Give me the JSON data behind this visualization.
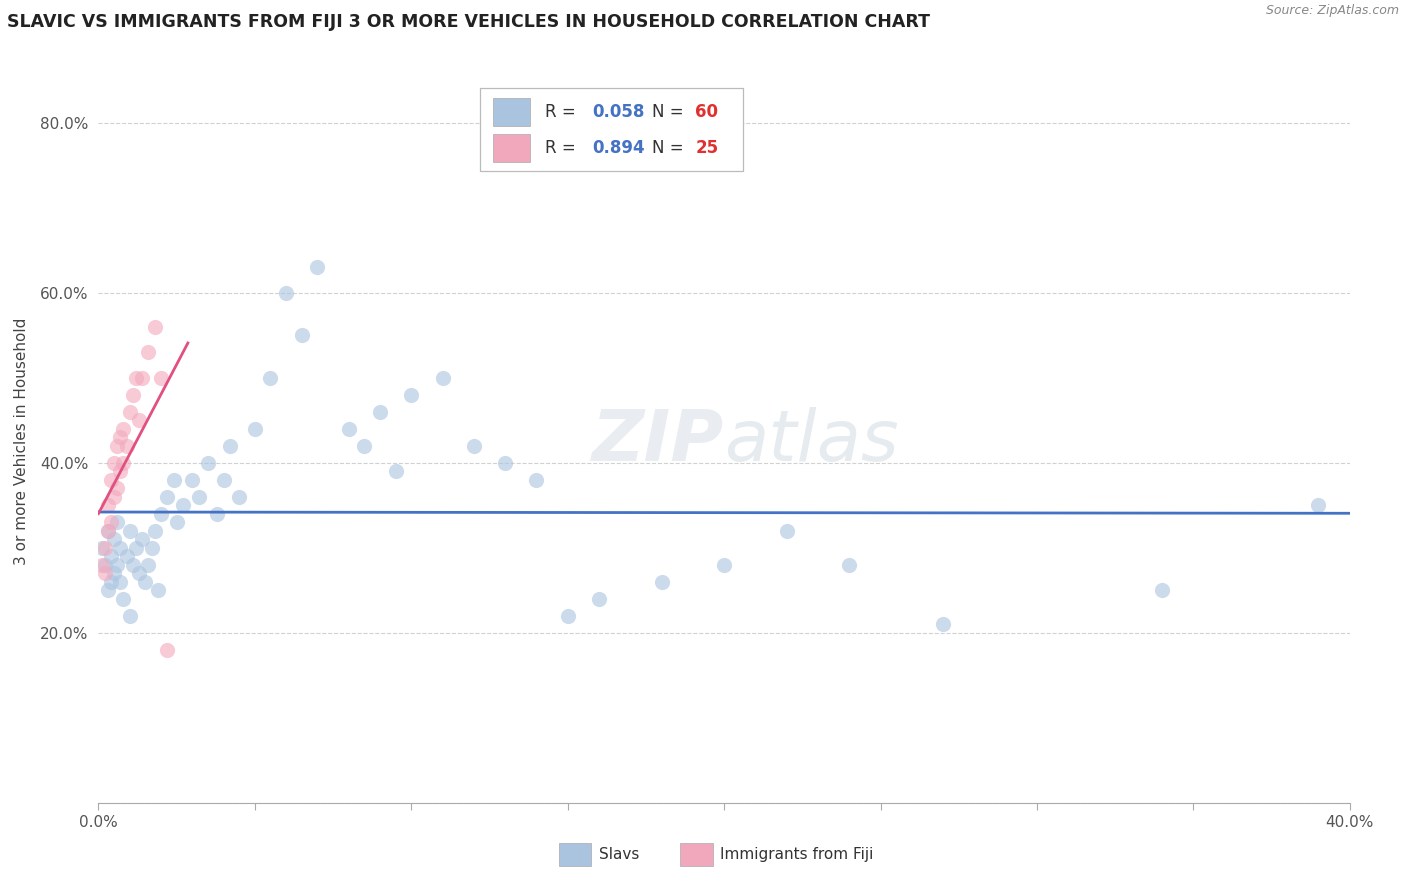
{
  "title": "SLAVIC VS IMMIGRANTS FROM FIJI 3 OR MORE VEHICLES IN HOUSEHOLD CORRELATION CHART",
  "source": "Source: ZipAtlas.com",
  "ylabel_label": "3 or more Vehicles in Household",
  "xlim": [
    0.0,
    0.4
  ],
  "ylim": [
    0.0,
    0.85
  ],
  "xticks": [
    0.0,
    0.05,
    0.1,
    0.15,
    0.2,
    0.25,
    0.3,
    0.35,
    0.4
  ],
  "yticks": [
    0.0,
    0.2,
    0.4,
    0.6,
    0.8
  ],
  "slavs_x": [
    0.001,
    0.002,
    0.003,
    0.003,
    0.004,
    0.004,
    0.005,
    0.005,
    0.006,
    0.006,
    0.007,
    0.007,
    0.008,
    0.009,
    0.01,
    0.01,
    0.011,
    0.012,
    0.013,
    0.014,
    0.015,
    0.016,
    0.017,
    0.018,
    0.019,
    0.02,
    0.022,
    0.024,
    0.025,
    0.027,
    0.03,
    0.032,
    0.035,
    0.038,
    0.04,
    0.042,
    0.045,
    0.05,
    0.055,
    0.06,
    0.065,
    0.07,
    0.08,
    0.085,
    0.09,
    0.095,
    0.1,
    0.11,
    0.12,
    0.13,
    0.14,
    0.15,
    0.16,
    0.18,
    0.2,
    0.22,
    0.24,
    0.27,
    0.34,
    0.39
  ],
  "slavs_y": [
    0.3,
    0.28,
    0.32,
    0.25,
    0.29,
    0.26,
    0.31,
    0.27,
    0.33,
    0.28,
    0.3,
    0.26,
    0.24,
    0.29,
    0.32,
    0.22,
    0.28,
    0.3,
    0.27,
    0.31,
    0.26,
    0.28,
    0.3,
    0.32,
    0.25,
    0.34,
    0.36,
    0.38,
    0.33,
    0.35,
    0.38,
    0.36,
    0.4,
    0.34,
    0.38,
    0.42,
    0.36,
    0.44,
    0.5,
    0.6,
    0.55,
    0.63,
    0.44,
    0.42,
    0.46,
    0.39,
    0.48,
    0.5,
    0.42,
    0.4,
    0.38,
    0.22,
    0.24,
    0.26,
    0.28,
    0.32,
    0.28,
    0.21,
    0.25,
    0.35
  ],
  "fiji_x": [
    0.001,
    0.002,
    0.002,
    0.003,
    0.003,
    0.004,
    0.004,
    0.005,
    0.005,
    0.006,
    0.006,
    0.007,
    0.007,
    0.008,
    0.008,
    0.009,
    0.01,
    0.011,
    0.012,
    0.013,
    0.014,
    0.016,
    0.018,
    0.02,
    0.022
  ],
  "fiji_y": [
    0.28,
    0.3,
    0.27,
    0.32,
    0.35,
    0.33,
    0.38,
    0.36,
    0.4,
    0.37,
    0.42,
    0.39,
    0.43,
    0.4,
    0.44,
    0.42,
    0.46,
    0.48,
    0.5,
    0.45,
    0.5,
    0.53,
    0.56,
    0.5,
    0.18
  ],
  "slavs_color": "#aac4e0",
  "fiji_color": "#f2a8bc",
  "slavs_line_color": "#4472c4",
  "fiji_line_color": "#e05080",
  "R_slavs": 0.058,
  "N_slavs": 60,
  "R_fiji": 0.894,
  "N_fiji": 25,
  "watermark_zip": "ZIP",
  "watermark_atlas": "atlas",
  "legend_R_color": "#4472c4",
  "legend_N_color": "#e03030"
}
